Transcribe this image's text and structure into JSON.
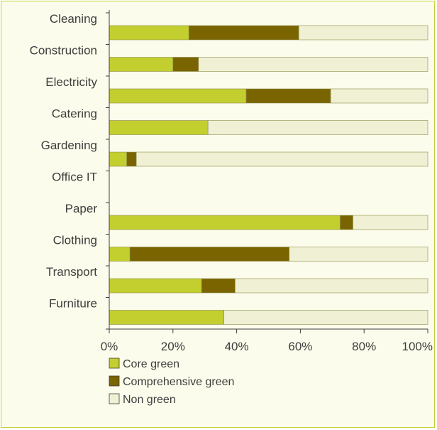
{
  "chart_data": {
    "type": "bar",
    "orientation": "horizontal",
    "stacked": true,
    "categories": [
      "Cleaning",
      "Construction",
      "Electricity",
      "Catering",
      "Gardening",
      "Office IT",
      "Paper",
      "Clothing",
      "Transport",
      "Furniture"
    ],
    "series": [
      {
        "name": "Core green",
        "color": "#c3cf2e",
        "values": [
          25,
          20,
          43,
          31,
          5.5,
          0,
          72.5,
          6.5,
          29,
          36
        ]
      },
      {
        "name": "Comprehensive green",
        "color": "#7a6400",
        "values": [
          34.5,
          8,
          26.5,
          0,
          3,
          0,
          4,
          50,
          10.5,
          0
        ]
      },
      {
        "name": "Non green",
        "color": "#f0f0d4",
        "values": [
          40.5,
          72,
          30.5,
          69,
          91.5,
          0,
          23.5,
          43.5,
          60.5,
          64
        ]
      }
    ],
    "xticks": [
      "0%",
      "20%",
      "40%",
      "60%",
      "80%",
      "100%"
    ],
    "xlim": [
      0,
      100
    ],
    "legend_position": "bottom-left",
    "grid": false
  }
}
